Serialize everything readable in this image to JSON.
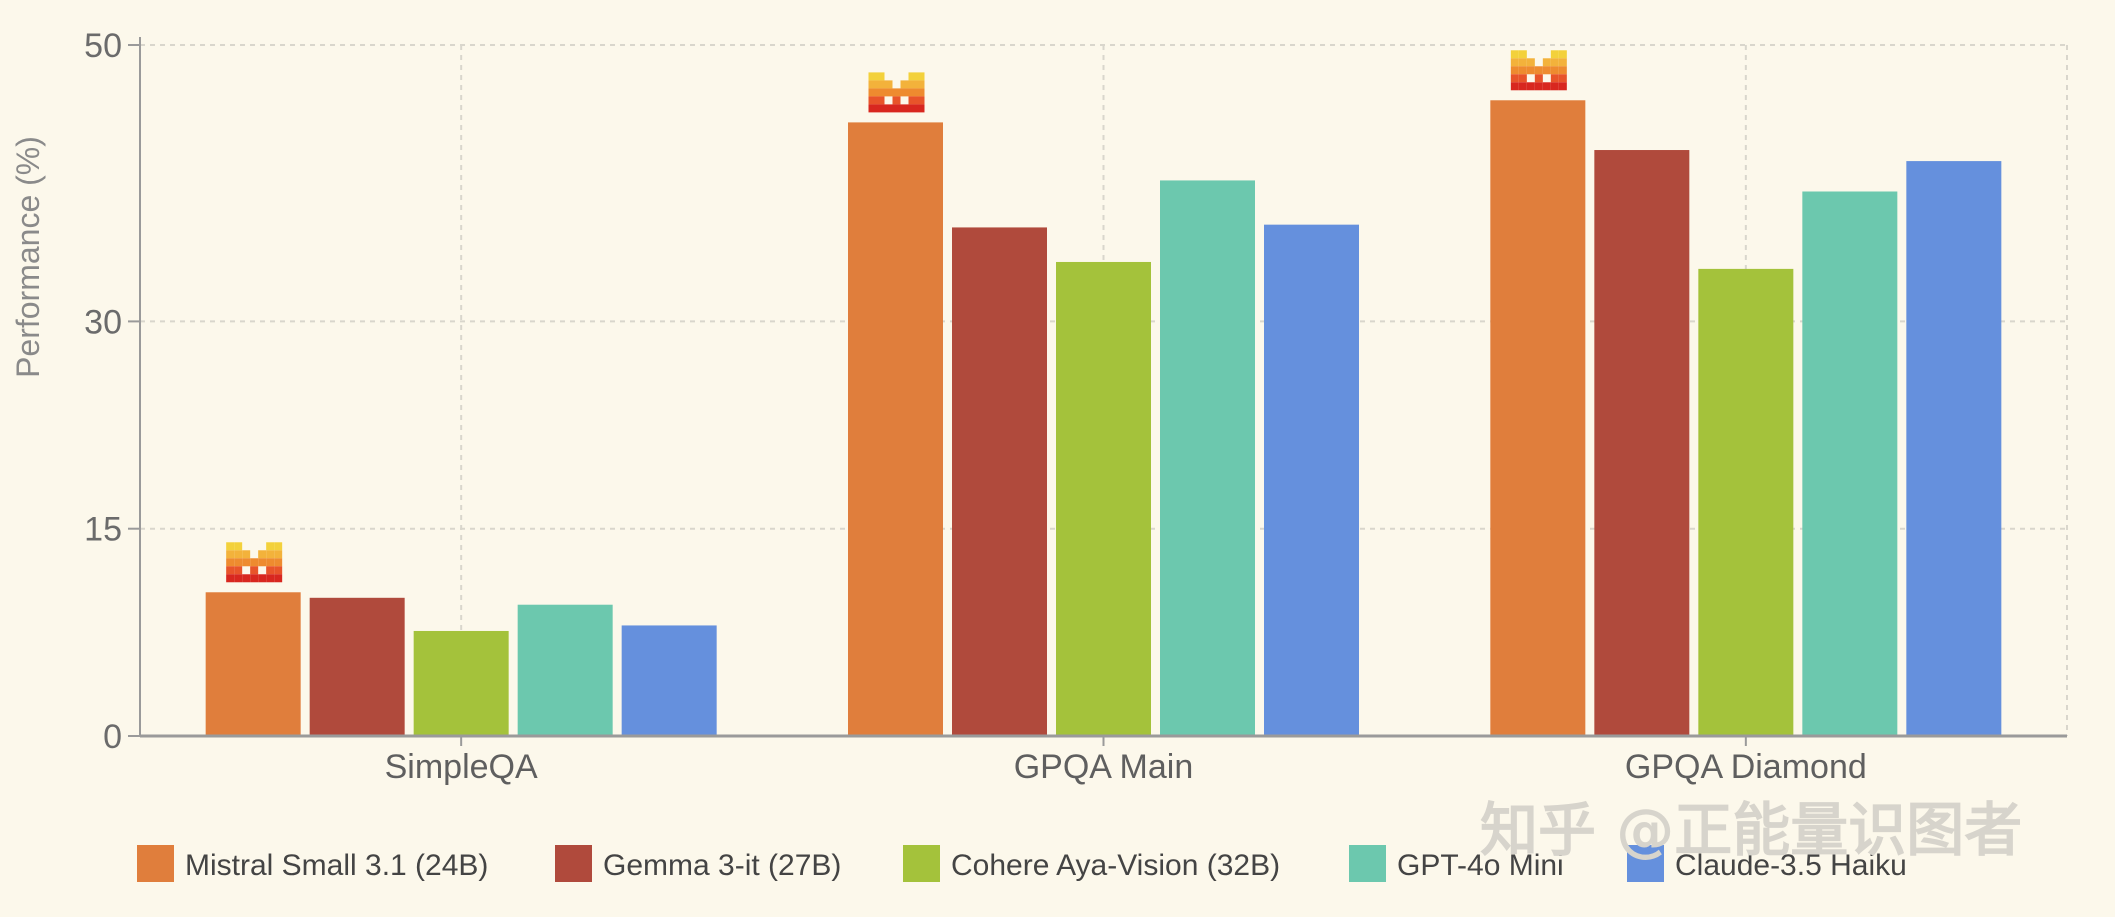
{
  "chart_data": {
    "type": "bar",
    "ylabel": "Performance (%)",
    "xlabel": "",
    "ylim": [
      0,
      50
    ],
    "yticks": [
      0,
      15,
      30,
      50
    ],
    "grid": true,
    "legend_position": "bottom",
    "categories": [
      "SimpleQA",
      "GPQA Main",
      "GPQA Diamond"
    ],
    "series": [
      {
        "name": "Mistral Small 3.1 (24B)",
        "color": "#e07e3c",
        "values": [
          10.4,
          44.4,
          46.0
        ]
      },
      {
        "name": "Gemma 3-it (27B)",
        "color": "#b04a3c",
        "values": [
          10.0,
          36.8,
          42.4
        ]
      },
      {
        "name": "Cohere Aya-Vision (32B)",
        "color": "#a4c23b",
        "values": [
          7.6,
          34.3,
          33.8
        ]
      },
      {
        "name": "GPT-4o Mini",
        "color": "#6cc8ae",
        "values": [
          9.5,
          40.2,
          39.4
        ]
      },
      {
        "name": "Claude-3.5 Haiku",
        "color": "#6590dd",
        "values": [
          8.0,
          37.0,
          41.6
        ]
      }
    ],
    "highlight_icon": "mistral-logo-icon",
    "highlight_series_index": 0
  },
  "watermark": "知乎 @正能量识图者"
}
